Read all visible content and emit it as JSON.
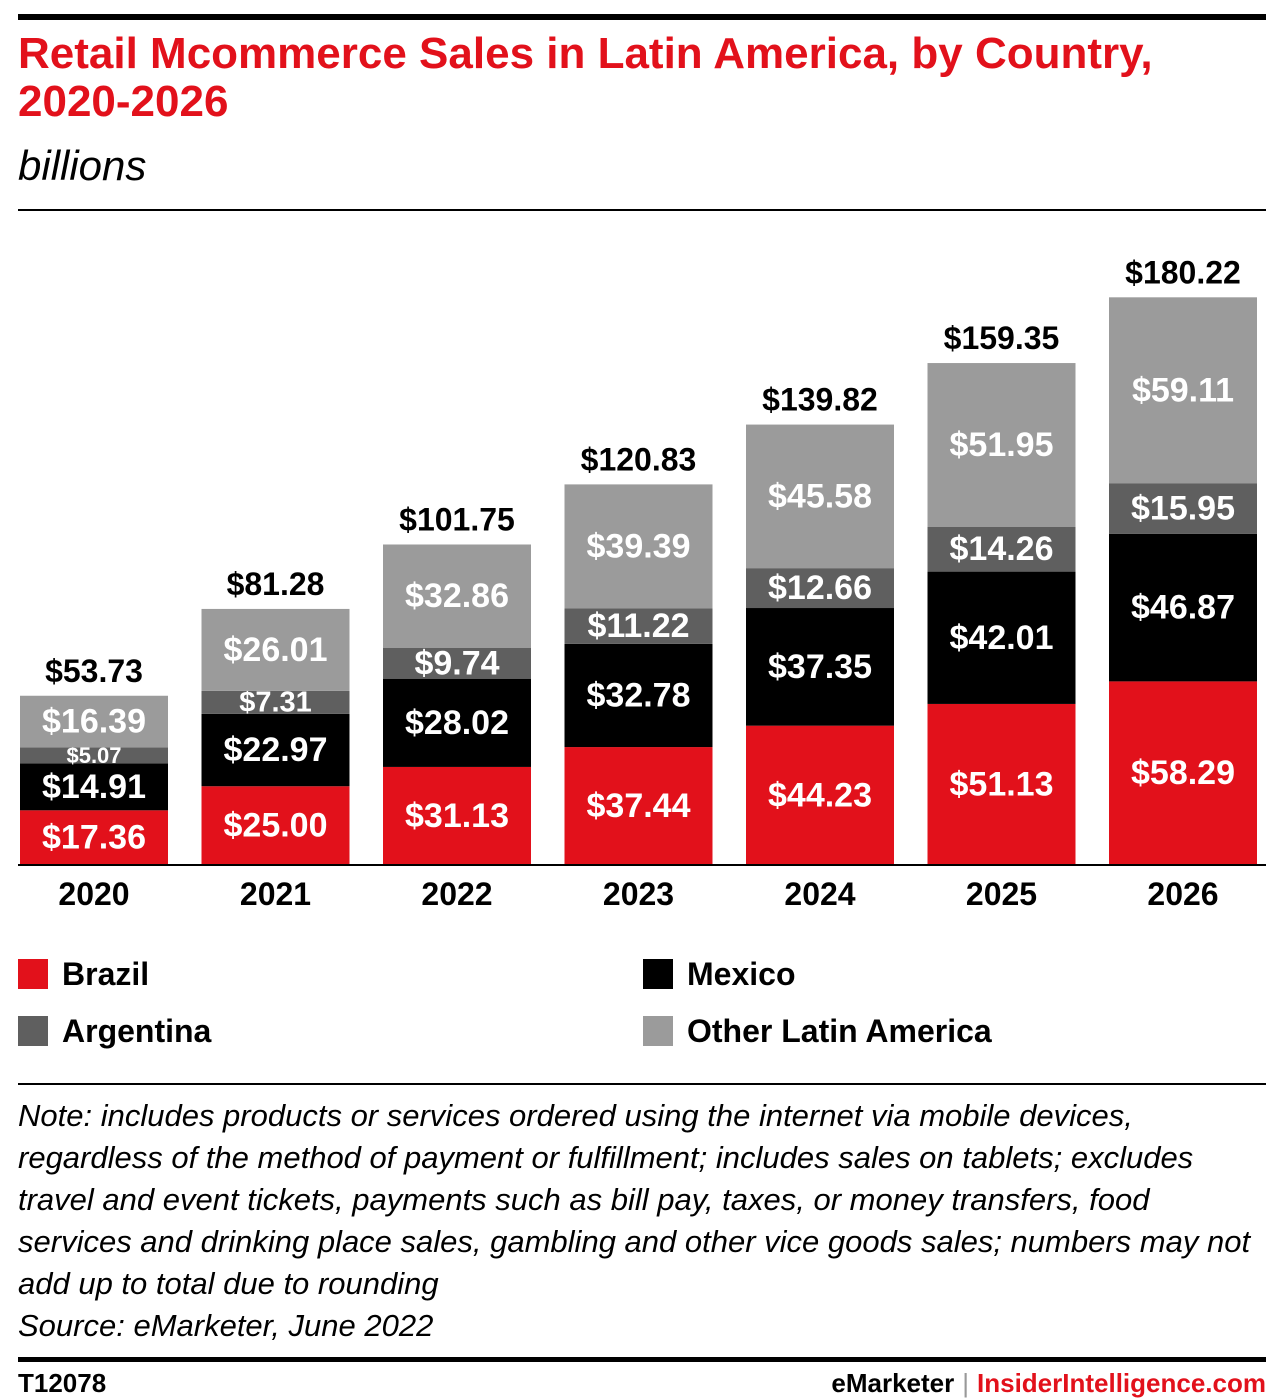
{
  "header": {
    "title": "Retail Mcommerce Sales in Latin America, by Country, 2020-2026",
    "subtitle": "billions"
  },
  "chart_data": {
    "type": "bar",
    "stacked": true,
    "title": "Retail Mcommerce Sales in Latin America, by Country, 2020-2026",
    "subtitle": "billions",
    "categories": [
      "2020",
      "2021",
      "2022",
      "2023",
      "2024",
      "2025",
      "2026"
    ],
    "series": [
      {
        "name": "Brazil",
        "color": "#e2111b",
        "label_color": "#ffffff",
        "values": [
          17.36,
          25.0,
          31.13,
          37.44,
          44.23,
          51.13,
          58.29
        ],
        "labels": [
          "$17.36",
          "$25.00",
          "$31.13",
          "$37.44",
          "$44.23",
          "$51.13",
          "$58.29"
        ]
      },
      {
        "name": "Mexico",
        "color": "#000000",
        "label_color": "#ffffff",
        "values": [
          14.91,
          22.97,
          28.02,
          32.78,
          37.35,
          42.01,
          46.87
        ],
        "labels": [
          "$14.91",
          "$22.97",
          "$28.02",
          "$32.78",
          "$37.35",
          "$42.01",
          "$46.87"
        ]
      },
      {
        "name": "Argentina",
        "color": "#5f5f5f",
        "label_color": "#ffffff",
        "values": [
          5.07,
          7.31,
          9.74,
          11.22,
          12.66,
          14.26,
          15.95
        ],
        "labels": [
          "$5.07",
          "$7.31",
          "$9.74",
          "$11.22",
          "$12.66",
          "$14.26",
          "$15.95"
        ]
      },
      {
        "name": "Other Latin America",
        "color": "#9b9b9b",
        "label_color": "#ffffff",
        "values": [
          16.39,
          26.01,
          32.86,
          39.39,
          45.58,
          51.95,
          59.11
        ],
        "labels": [
          "$16.39",
          "$26.01",
          "$32.86",
          "$39.39",
          "$45.58",
          "$51.95",
          "$59.11"
        ]
      }
    ],
    "totals": [
      53.73,
      81.28,
      101.75,
      120.83,
      139.82,
      159.35,
      180.22
    ],
    "total_labels": [
      "$53.73",
      "$81.28",
      "$101.75",
      "$120.83",
      "$139.82",
      "$159.35",
      "$180.22"
    ],
    "ylim": [
      0,
      200
    ],
    "grid": false,
    "legend_placement": "bottom"
  },
  "legend": [
    {
      "label": "Brazil",
      "color": "#e2111b"
    },
    {
      "label": "Mexico",
      "color": "#000000"
    },
    {
      "label": "Argentina",
      "color": "#5f5f5f"
    },
    {
      "label": "Other Latin America",
      "color": "#9b9b9b"
    }
  ],
  "note": {
    "text": "Note: includes products or services ordered using the internet via mobile devices, regardless of the method of payment or fulfillment; includes sales on tablets; excludes travel and event tickets, payments such as bill pay, taxes, or money transfers, food services and drinking place sales, gambling and other vice goods sales; numbers may not add up to total due to rounding",
    "source": "Source: eMarketer, June 2022"
  },
  "footer": {
    "chart_id": "T12078",
    "brand_left": "eMarketer",
    "separator": "|",
    "brand_right": "InsiderIntelligence.com"
  }
}
